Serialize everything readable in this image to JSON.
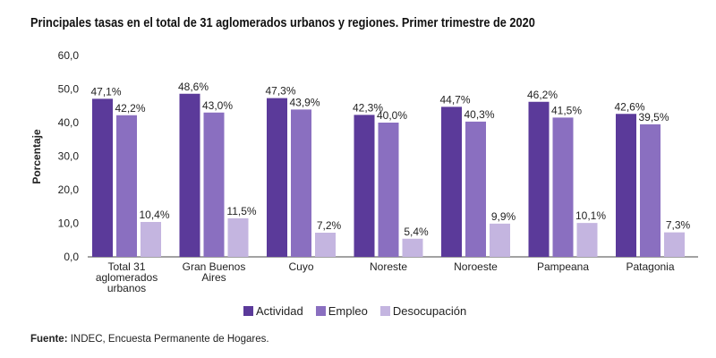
{
  "chart_data": {
    "type": "bar",
    "title": "Principales tasas en el total de 31 aglomerados urbanos y regiones. Primer trimestre de 2020",
    "xlabel": "",
    "ylabel": "Porcentaje",
    "ylim": [
      0,
      60
    ],
    "yticks": [
      "0,0",
      "10,0",
      "20,0",
      "30,0",
      "40,0",
      "50,0",
      "60,0"
    ],
    "categories": [
      [
        "Total 31",
        "aglomerados",
        "urbanos"
      ],
      [
        "Gran Buenos",
        "Aires"
      ],
      [
        "Cuyo"
      ],
      [
        "Noreste"
      ],
      [
        "Noroeste"
      ],
      [
        "Pampeana"
      ],
      [
        "Patagonia"
      ]
    ],
    "series": [
      {
        "name": "Actividad",
        "color": "#5b3a9a",
        "values": [
          47.1,
          48.6,
          47.3,
          42.3,
          44.7,
          46.2,
          42.6
        ],
        "labels": [
          "47,1%",
          "48,6%",
          "47,3%",
          "42,3%",
          "44,7%",
          "46,2%",
          "42,6%"
        ]
      },
      {
        "name": "Empleo",
        "color": "#8a6fc0",
        "values": [
          42.2,
          43.0,
          43.9,
          40.0,
          40.3,
          41.5,
          39.5
        ],
        "labels": [
          "42,2%",
          "43,0%",
          "43,9%",
          "40,0%",
          "40,3%",
          "41,5%",
          "39,5%"
        ]
      },
      {
        "name": "Desocupación",
        "color": "#c4b5e0",
        "values": [
          10.4,
          11.5,
          7.2,
          5.4,
          9.9,
          10.1,
          7.3
        ],
        "labels": [
          "10,4%",
          "11,5%",
          "7,2%",
          "5,4%",
          "9,9%",
          "10,1%",
          "7,3%"
        ]
      }
    ],
    "legend": "bottom",
    "grid": false
  },
  "source": {
    "label": "Fuente:",
    "text": " INDEC, Encuesta Permanente de Hogares."
  }
}
